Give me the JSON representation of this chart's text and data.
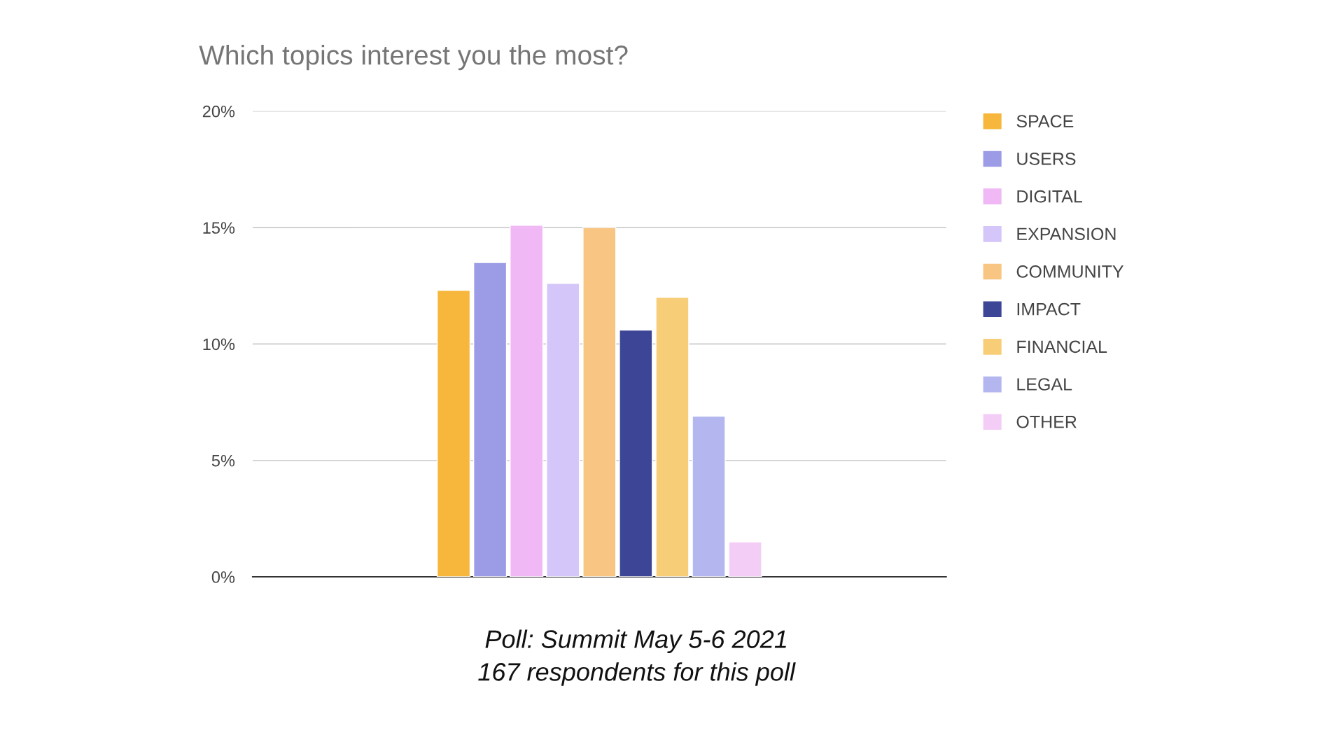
{
  "chart_data": {
    "type": "bar",
    "title": "Which topics interest you the most?",
    "categories": [
      null
    ],
    "series": [
      {
        "name": "SPACE",
        "color": "#f6b73c",
        "values": [
          12.3
        ]
      },
      {
        "name": "USERS",
        "color": "#9b9be6",
        "values": [
          13.5
        ]
      },
      {
        "name": "DIGITAL",
        "color": "#f0b8f5",
        "values": [
          15.1
        ]
      },
      {
        "name": "EXPANSION",
        "color": "#d5c6fa",
        "values": [
          12.6
        ]
      },
      {
        "name": "COMMUNITY",
        "color": "#f8c583",
        "values": [
          15.0
        ]
      },
      {
        "name": "IMPACT",
        "color": "#3c4596",
        "values": [
          10.6
        ]
      },
      {
        "name": "FINANCIAL",
        "color": "#f8cd78",
        "values": [
          12.0
        ]
      },
      {
        "name": "LEGAL",
        "color": "#b4b6ef",
        "values": [
          6.9
        ]
      },
      {
        "name": "OTHER",
        "color": "#f4cdf6",
        "values": [
          1.5
        ]
      }
    ],
    "ylim": [
      0,
      20
    ],
    "yticks": [
      {
        "value": 0,
        "label": "0%"
      },
      {
        "value": 5,
        "label": "5%"
      },
      {
        "value": 10,
        "label": "10%"
      },
      {
        "value": 15,
        "label": "15%"
      },
      {
        "value": 20,
        "label": "20%"
      }
    ],
    "grid": "y",
    "legend": "right",
    "annotations": [
      "Poll: Summit May 5-6 2021\n167 respondents for this poll"
    ]
  }
}
